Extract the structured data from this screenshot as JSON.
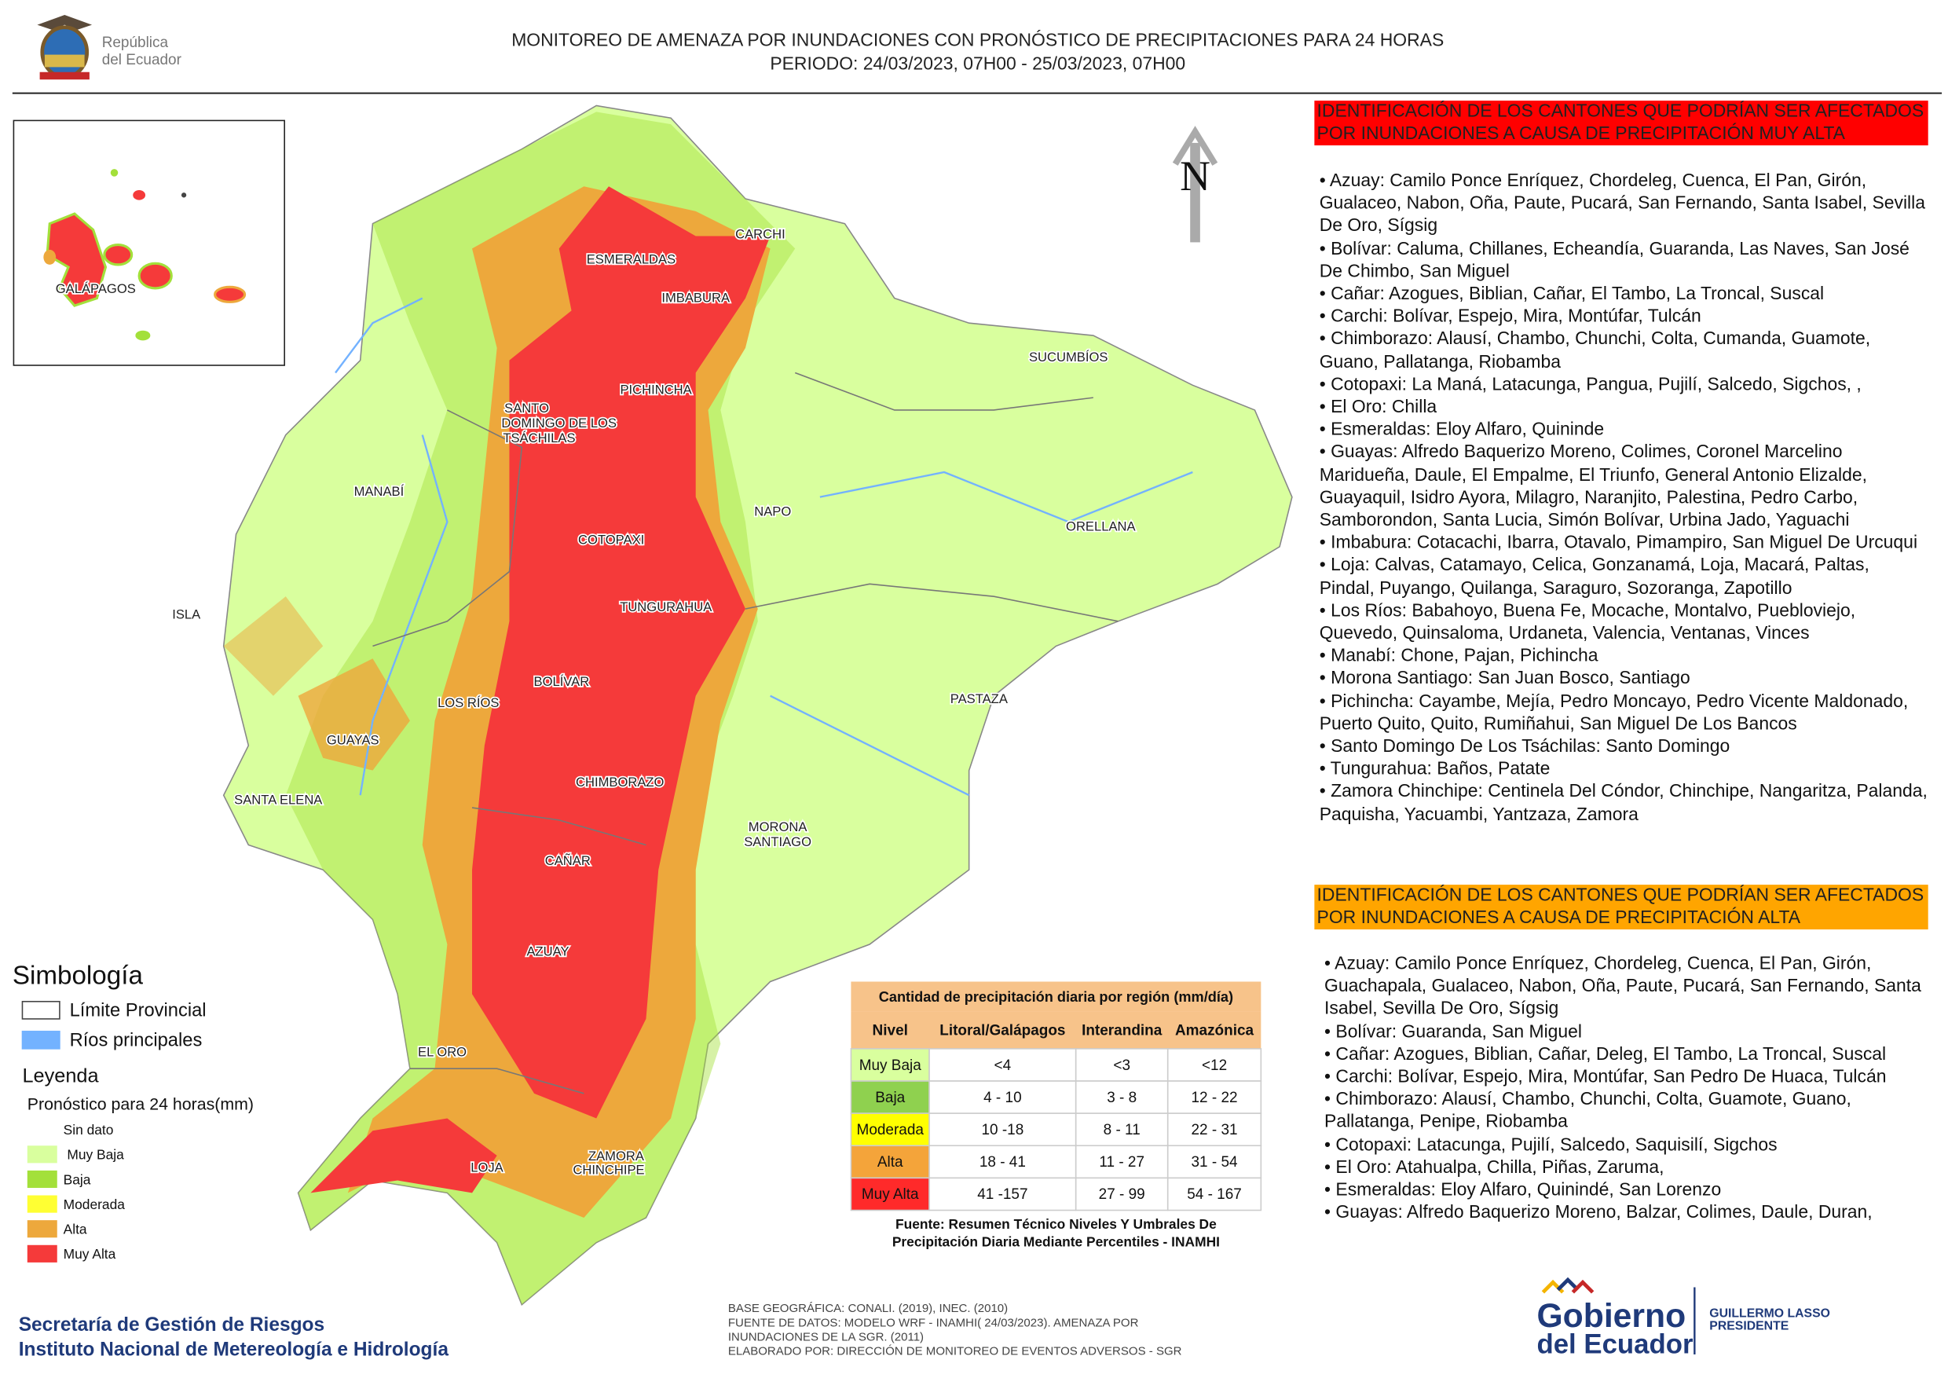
{
  "header": {
    "title_line1": "MONITOREO DE AMENAZA POR INUNDACIONES  CON PRONÓSTICO DE  PRECIPITACIONES PARA 24 HORAS",
    "title_line2": "PERIODO: 24/03/2023, 07H00 - 25/03/2023, 07H00",
    "logo_line1": "República",
    "logo_line2": "del Ecuador"
  },
  "map_labels": [
    "CARCHI",
    "ESMERALDAS",
    "IMBABURA",
    "SUCUMBÍOS",
    "PICHINCHA",
    "SANTO",
    "DOMINGO DE LOS",
    "TSÁCHILAS",
    "MANABÍ",
    "NAPO",
    "ORELLANA",
    "COTOPAXI",
    "ISLA",
    "TUNGURAHUA",
    "BOLÍVAR",
    "LOS RÍOS",
    "PASTAZA",
    "GUAYAS",
    "CHIMBORAZO",
    "SANTA ELENA",
    "MORONA",
    "SANTIAGO",
    "CAÑAR",
    "AZUAY",
    "EL ORO",
    "LOJA",
    "ZAMORA",
    "CHINCHIPE",
    "GALÁPAGOS"
  ],
  "north": "N",
  "legend": {
    "title": "Simbología",
    "symbols": [
      {
        "label": "Límite Provincial",
        "color": "#ffffff"
      },
      {
        "label": "Ríos principales",
        "color": "#73b2ff"
      }
    ],
    "subtitle": "Leyenda",
    "forecast": "Pronóstico para 24 horas(mm)",
    "classes": [
      {
        "label": "Sin dato",
        "color": "#ffffff"
      },
      {
        "label": "Muy Baja",
        "color": "#d9ff9e"
      },
      {
        "label": "Baja",
        "color": "#a3e03a"
      },
      {
        "label": "Moderada",
        "color": "#ffff33"
      },
      {
        "label": "Alta",
        "color": "#eda83c"
      },
      {
        "label": "Muy Alta",
        "color": "#f53a3a"
      }
    ]
  },
  "table": {
    "title": "Cantidad de precipitación diaria por región (mm/día)",
    "headers": [
      "Nivel",
      "Litoral/Galápagos",
      "Interandina",
      "Amazónica"
    ],
    "rows": [
      [
        "Muy Baja",
        "<4",
        "<3",
        "<12"
      ],
      [
        "Baja",
        "4 - 10",
        "3 - 8",
        "12 - 22"
      ],
      [
        "Moderada",
        "10 -18",
        "8 - 11",
        "22 - 31"
      ],
      [
        "Alta",
        "18 - 41",
        "11 - 27",
        "31 - 54"
      ],
      [
        "Muy Alta",
        "41 -157",
        "27 - 99",
        "54 - 167"
      ]
    ],
    "row_colors": [
      "#d9ff9e",
      "#8fd14f",
      "#ffff00",
      "#f4a43a",
      "#ff2a2a"
    ],
    "source_line1": "Fuente: Resumen Técnico Niveles Y Umbrales De",
    "source_line2": "Precipitación Diaria Mediante Percentiles - INAMHI"
  },
  "panels": [
    {
      "heading": "IDENTIFICACIÓN DE LOS CANTONES QUE PODRÍAN SER AFECTADOS POR INUNDACIONES  A CAUSA DE PRECIPITACIÓN MUY ALTA",
      "color": "#ff0000",
      "items": [
        "• Azuay: Camilo Ponce Enríquez, Chordeleg, Cuenca, El Pan, Girón, Gualaceo, Nabon, Oña, Paute, Pucará, San Fernando, Santa Isabel, Sevilla De Oro, Sígsig",
        "• Bolívar: Caluma, Chillanes, Echeandía, Guaranda, Las Naves, San José De Chimbo, San Miguel",
        "• Cañar: Azogues, Biblian, Cañar, El Tambo, La Troncal, Suscal",
        "• Carchi: Bolívar, Espejo, Mira, Montúfar, Tulcán",
        "• Chimborazo: Alausí, Chambo, Chunchi, Colta, Cumanda, Guamote, Guano, Pallatanga, Riobamba",
        "• Cotopaxi: La Maná, Latacunga, Pangua, Pujilí, Salcedo, Sigchos, ,",
        "• El Oro: Chilla",
        "• Esmeraldas: Eloy Alfaro, Quininde",
        "• Guayas: Alfredo Baquerizo Moreno, Colimes, Coronel Marcelino Maridueña, Daule, El Empalme, El Triunfo, General Antonio Elizalde, Guayaquil, Isidro Ayora, Milagro, Naranjito, Palestina, Pedro Carbo, Samborondon, Santa Lucia, Simón Bolívar, Urbina Jado, Yaguachi",
        "• Imbabura: Cotacachi, Ibarra, Otavalo, Pimampiro, San Miguel De Urcuqui",
        "• Loja: Calvas, Catamayo, Celica, Gonzanamá, Loja, Macará, Paltas, Pindal, Puyango, Quilanga, Saraguro, Sozoranga, Zapotillo",
        "• Los Ríos: Babahoyo, Buena Fe, Mocache, Montalvo, Puebloviejo, Quevedo, Quinsaloma, Urdaneta, Valencia, Ventanas, Vinces",
        "• Manabí: Chone, Pajan, Pichincha",
        "• Morona Santiago: San Juan Bosco, Santiago",
        "• Pichincha: Cayambe, Mejía, Pedro Moncayo, Pedro Vicente Maldonado, Puerto Quito, Quito, Rumiñahui, San Miguel De Los Bancos",
        "• Santo Domingo De Los Tsáchilas: Santo Domingo",
        "• Tungurahua: Baños, Patate",
        "• Zamora Chinchipe: Centinela Del Cóndor, Chinchipe, Nangaritza, Palanda, Paquisha, Yacuambi, Yantzaza, Zamora"
      ]
    },
    {
      "heading": "IDENTIFICACIÓN DE LOS CANTONES QUE  PODRÍAN SER AFECTADOS POR INUNDACIONES  A CAUSA DE PRECIPITACIÓN ALTA",
      "color": "#ffa500",
      "items": [
        "• Azuay: Camilo Ponce Enríquez, Chordeleg, Cuenca, El Pan, Girón, Guachapala, Gualaceo, Nabon, Oña, Paute, Pucará, San Fernando, Santa Isabel, Sevilla De Oro, Sígsig",
        "• Bolívar: Guaranda, San Miguel",
        "• Cañar: Azogues, Biblian, Cañar, Deleg, El Tambo, La Troncal, Suscal",
        "• Carchi: Bolívar, Espejo, Mira, Montúfar, San Pedro De Huaca, Tulcán",
        "• Chimborazo: Alausí, Chambo, Chunchi, Colta, Guamote, Guano, Pallatanga, Penipe, Riobamba",
        "• Cotopaxi: Latacunga, Pujilí, Salcedo, Saquisilí, Sigchos",
        "• El Oro: Atahualpa, Chilla, Piñas, Zaruma,",
        "• Esmeraldas: Eloy Alfaro, Quinindé, San Lorenzo",
        "• Guayas: Alfredo Baquerizo Moreno, Balzar, Colimes, Daule, Duran,"
      ]
    }
  ],
  "footer": {
    "org_line1": "Secretaría de Gestión de Riesgos",
    "org_line2": "Instituto Nacional de Metereología e Hidrología",
    "notes": [
      "BASE GEOGRÁFICA: CONALI. (2019), INEC. (2010)",
      "FUENTE DE DATOS: MODELO WRF - INAMHI( 24/03/2023).  AMENAZA POR",
      "INUNDACIONES DE LA SGR. (2011)",
      "ELABORADO POR: DIRECCIÓN DE MONITOREO DE EVENTOS ADVERSOS - SGR"
    ],
    "gov_line1": "Gobierno",
    "gov_line2": "del Ecuador",
    "president_line1": "GUILLERMO LASSO",
    "president_line2": "PRESIDENTE"
  }
}
